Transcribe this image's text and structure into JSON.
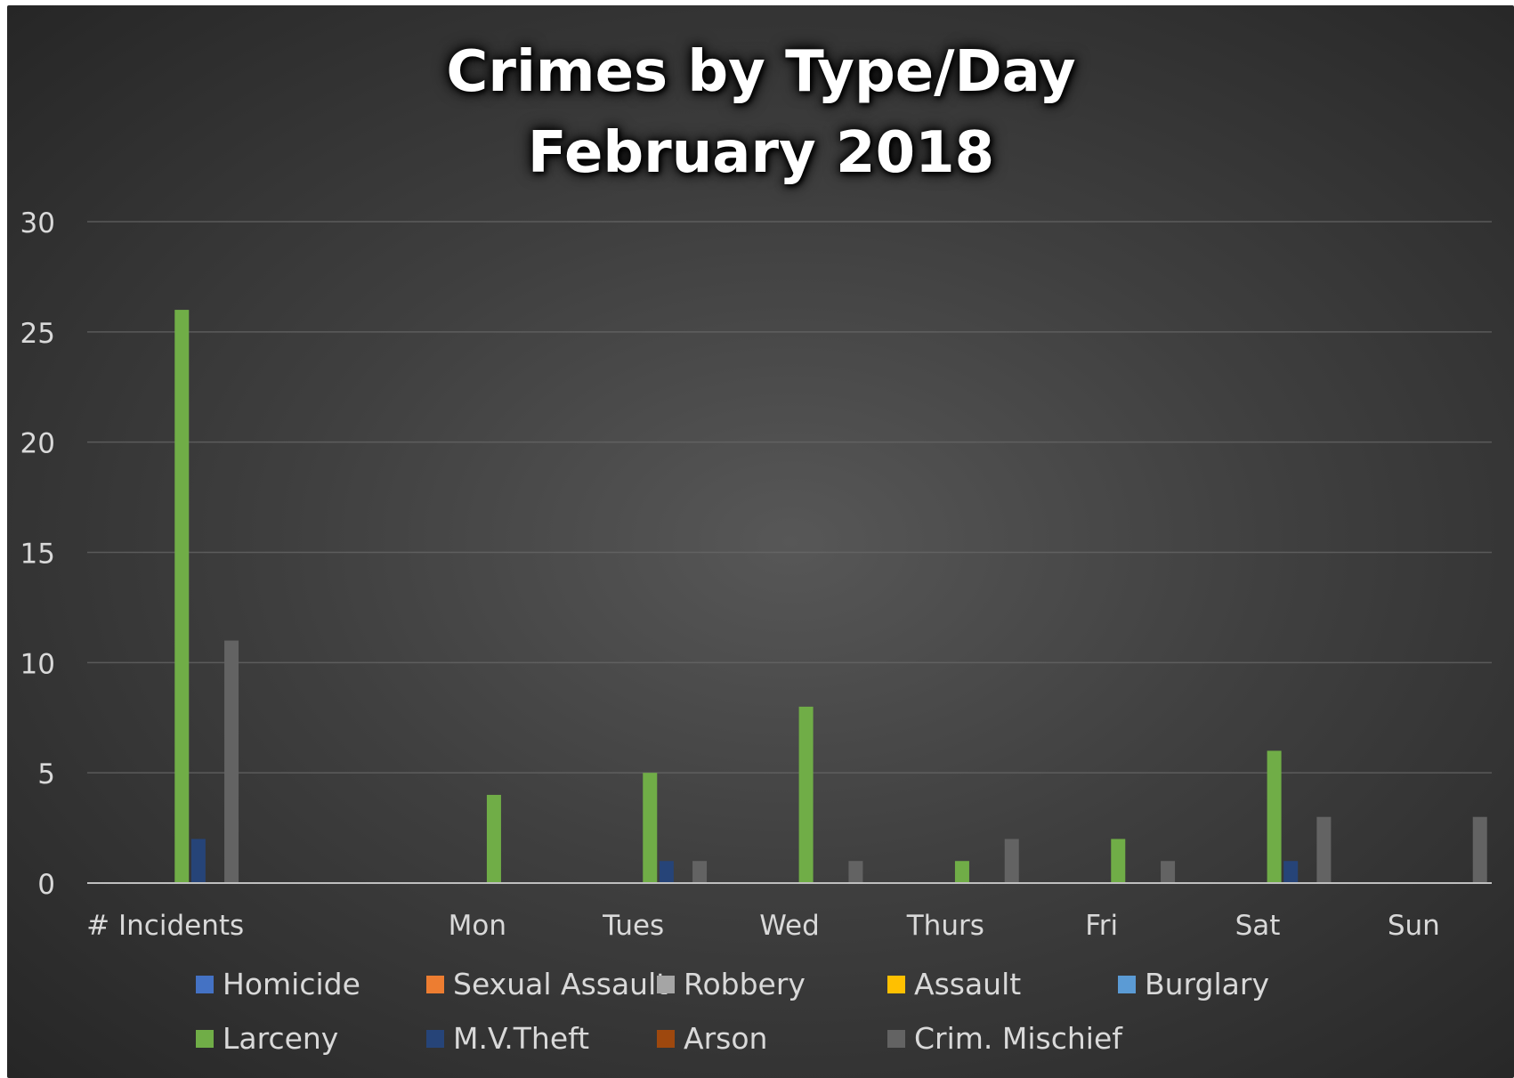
{
  "chart_data": {
    "type": "bar",
    "title_lines": [
      "Crimes by Type/Day",
      "February 2018"
    ],
    "categories": [
      "# Incidents",
      "",
      "Mon",
      "Tues",
      "Wed",
      "Thurs",
      "Fri",
      "Sat",
      "Sun"
    ],
    "ylim": [
      0,
      30
    ],
    "yticks": [
      0,
      5,
      10,
      15,
      20,
      25,
      30
    ],
    "grid": true,
    "legend_position": "bottom",
    "series": [
      {
        "name": "Homicide",
        "color": "#4472c4",
        "values": [
          0,
          0,
          0,
          0,
          0,
          0,
          0,
          0,
          0
        ]
      },
      {
        "name": "Sexual Assault",
        "color": "#ed7d31",
        "values": [
          0,
          0,
          0,
          0,
          0,
          0,
          0,
          0,
          0
        ]
      },
      {
        "name": "Robbery",
        "color": "#a5a5a5",
        "values": [
          0,
          0,
          0,
          0,
          0,
          0,
          0,
          0,
          0
        ]
      },
      {
        "name": "Assault",
        "color": "#ffc000",
        "values": [
          0,
          0,
          0,
          0,
          0,
          0,
          0,
          0,
          0
        ]
      },
      {
        "name": "Burglary",
        "color": "#5b9bd5",
        "values": [
          0,
          0,
          0,
          0,
          0,
          0,
          0,
          0,
          0
        ]
      },
      {
        "name": "Larceny",
        "color": "#70ad47",
        "values": [
          26,
          0,
          4,
          5,
          8,
          1,
          2,
          6,
          0
        ]
      },
      {
        "name": "M.V.Theft",
        "color": "#264478",
        "values": [
          2,
          0,
          0,
          1,
          0,
          0,
          0,
          1,
          0
        ]
      },
      {
        "name": "Arson",
        "color": "#9e480e",
        "values": [
          0,
          0,
          0,
          0,
          0,
          0,
          0,
          0,
          0
        ]
      },
      {
        "name": "Crim. Mischief",
        "color": "#636363",
        "values": [
          11,
          0,
          0,
          1,
          1,
          2,
          1,
          3,
          3
        ]
      }
    ]
  }
}
